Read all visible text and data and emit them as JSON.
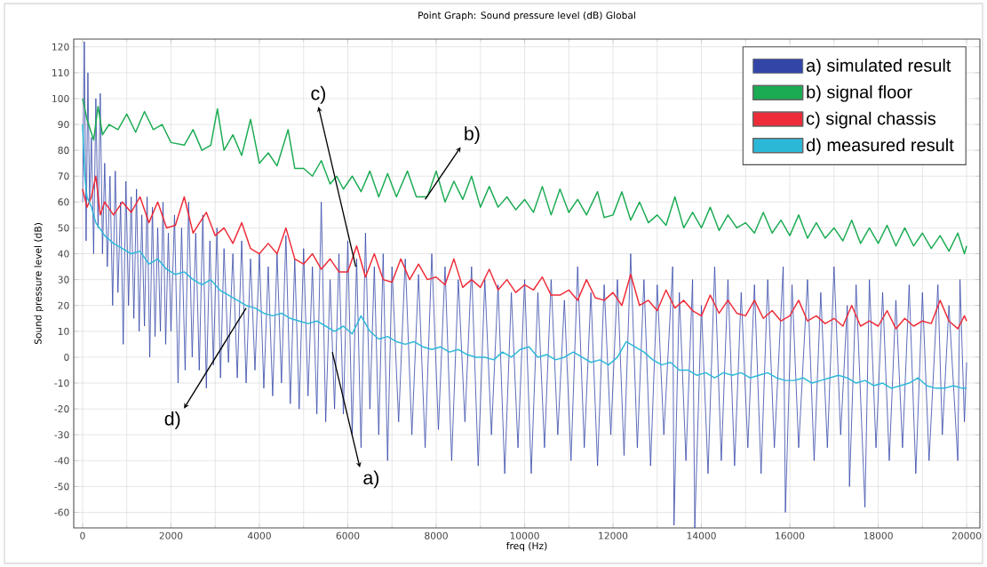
{
  "chart_data": {
    "type": "line",
    "title": "Point Graph: Sound pressure level (dB)  Global",
    "xlabel": "freq (Hz)",
    "ylabel": "Sound pressure level (dB)",
    "xlim": [
      -200,
      20300
    ],
    "ylim": [
      -66,
      123
    ],
    "xticks": [
      0,
      2000,
      4000,
      6000,
      8000,
      10000,
      12000,
      14000,
      16000,
      18000,
      20000
    ],
    "yticks": [
      -60,
      -50,
      -40,
      -30,
      -20,
      -10,
      0,
      10,
      20,
      30,
      40,
      50,
      60,
      70,
      80,
      90,
      100,
      110,
      120
    ],
    "grid": true,
    "legend": "top right",
    "series": [
      {
        "name": "a) simulated result",
        "color": "#3346a8",
        "x": [
          0,
          40,
          80,
          120,
          160,
          200,
          250,
          300,
          350,
          400,
          450,
          500,
          560,
          620,
          680,
          740,
          800,
          860,
          920,
          980,
          1040,
          1100,
          1160,
          1220,
          1280,
          1340,
          1400,
          1460,
          1520,
          1580,
          1640,
          1700,
          1760,
          1820,
          1880,
          1940,
          2000,
          2080,
          2160,
          2240,
          2320,
          2400,
          2480,
          2560,
          2640,
          2720,
          2800,
          2880,
          2960,
          3040,
          3120,
          3200,
          3300,
          3400,
          3500,
          3600,
          3700,
          3800,
          3900,
          4000,
          4100,
          4200,
          4300,
          4400,
          4500,
          4600,
          4700,
          4800,
          4900,
          5000,
          5100,
          5200,
          5300,
          5400,
          5500,
          5600,
          5700,
          5800,
          5900,
          6000,
          6100,
          6200,
          6300,
          6400,
          6500,
          6600,
          6700,
          6800,
          6900,
          7000,
          7150,
          7300,
          7450,
          7600,
          7750,
          7900,
          8050,
          8200,
          8350,
          8500,
          8650,
          8800,
          8950,
          9100,
          9250,
          9400,
          9550,
          9700,
          9850,
          10000,
          10150,
          10300,
          10450,
          10600,
          10750,
          10900,
          11050,
          11200,
          11350,
          11500,
          11650,
          11800,
          11950,
          12100,
          12250,
          12400,
          12550,
          12700,
          12850,
          13000,
          13150,
          13350,
          13380,
          13500,
          13650,
          13800,
          13850,
          14000,
          14150,
          14300,
          14450,
          14600,
          14750,
          14900,
          15050,
          15200,
          15350,
          15500,
          15650,
          15850,
          15900,
          16050,
          16200,
          16400,
          16550,
          16700,
          16850,
          17000,
          17150,
          17300,
          17350,
          17500,
          17700,
          17800,
          17950,
          18100,
          18250,
          18400,
          18550,
          18700,
          18850,
          19000,
          19150,
          19350,
          19450,
          19600,
          19800,
          19850,
          19950,
          20000
        ],
        "values": [
          60,
          122,
          45,
          110,
          60,
          85,
          40,
          100,
          50,
          102,
          40,
          75,
          35,
          70,
          20,
          72,
          25,
          60,
          5,
          68,
          20,
          62,
          15,
          65,
          10,
          55,
          12,
          62,
          0,
          58,
          8,
          50,
          10,
          60,
          5,
          48,
          10,
          55,
          -10,
          50,
          -5,
          60,
          0,
          48,
          -5,
          55,
          -12,
          45,
          -3,
          50,
          -8,
          42,
          -2,
          40,
          -8,
          45,
          -10,
          38,
          -5,
          40,
          -12,
          35,
          -15,
          40,
          -10,
          47,
          -18,
          38,
          -20,
          42,
          -15,
          35,
          -22,
          60,
          -25,
          30,
          -20,
          40,
          -22,
          45,
          -30,
          38,
          -35,
          48,
          -20,
          35,
          -30,
          40,
          -40,
          35,
          -25,
          38,
          -30,
          32,
          -35,
          40,
          -28,
          35,
          -40,
          30,
          -25,
          35,
          -42,
          30,
          -30,
          28,
          -45,
          25,
          -35,
          30,
          -45,
          25,
          -35,
          30,
          -30,
          22,
          -40,
          35,
          -35,
          25,
          -42,
          28,
          -30,
          30,
          -38,
          40,
          -35,
          30,
          -42,
          28,
          -30,
          35,
          -65,
          25,
          -40,
          30,
          -66,
          20,
          -45,
          35,
          -40,
          30,
          -42,
          25,
          -35,
          28,
          -45,
          30,
          -35,
          35,
          -60,
          28,
          -35,
          30,
          -40,
          25,
          -35,
          35,
          -30,
          20,
          -50,
          28,
          -58,
          30,
          -35,
          25,
          -40,
          22,
          -35,
          28,
          -45,
          25,
          -40,
          28,
          -30,
          20,
          -40,
          30,
          -25,
          -2
        ]
      },
      {
        "name": "b) signal floor",
        "color": "#1bab52",
        "x": [
          0,
          100,
          250,
          350,
          450,
          600,
          800,
          1000,
          1200,
          1400,
          1600,
          1800,
          2000,
          2300,
          2500,
          2700,
          2900,
          3050,
          3200,
          3400,
          3600,
          3800,
          4000,
          4200,
          4400,
          4650,
          4800,
          5000,
          5200,
          5400,
          5600,
          5750,
          5900,
          6100,
          6300,
          6500,
          6700,
          6900,
          7100,
          7350,
          7550,
          7800,
          8000,
          8200,
          8400,
          8600,
          8800,
          9000,
          9200,
          9400,
          9600,
          9800,
          10000,
          10200,
          10400,
          10600,
          10800,
          11000,
          11200,
          11400,
          11650,
          11800,
          12000,
          12200,
          12400,
          12600,
          12800,
          13000,
          13200,
          13400,
          13600,
          13800,
          14000,
          14200,
          14400,
          14600,
          14800,
          15000,
          15200,
          15400,
          15600,
          15800,
          16000,
          16200,
          16400,
          16600,
          16800,
          17000,
          17200,
          17400,
          17600,
          17800,
          18000,
          18200,
          18400,
          18600,
          18800,
          19000,
          19200,
          19400,
          19600,
          19800,
          19950,
          20000
        ],
        "values": [
          100,
          92,
          84,
          97,
          86,
          90,
          88,
          94,
          87,
          95,
          88,
          90,
          83,
          82,
          88,
          80,
          82,
          96,
          80,
          86,
          78,
          92,
          75,
          79,
          74,
          88,
          73,
          73,
          70,
          76,
          67,
          70,
          65,
          70,
          64,
          72,
          62,
          71,
          62,
          72,
          62,
          62,
          72,
          60,
          68,
          61,
          70,
          58,
          66,
          58,
          62,
          57,
          61,
          56,
          66,
          55,
          65,
          56,
          61,
          55,
          64,
          54,
          55,
          64,
          53,
          60,
          52,
          55,
          51,
          62,
          50,
          56,
          50,
          58,
          49,
          55,
          50,
          52,
          48,
          56,
          48,
          53,
          47,
          55,
          46,
          52,
          46,
          50,
          45,
          53,
          44,
          50,
          44,
          51,
          43,
          50,
          43,
          48,
          42,
          47,
          41,
          48,
          40,
          43
        ]
      },
      {
        "name": "c) signal chassis",
        "color": "#ee2b38",
        "x": [
          0,
          100,
          200,
          300,
          400,
          500,
          700,
          900,
          1100,
          1300,
          1500,
          1700,
          1900,
          2100,
          2300,
          2500,
          2800,
          3000,
          3200,
          3400,
          3600,
          3800,
          4000,
          4200,
          4400,
          4600,
          4800,
          5000,
          5200,
          5400,
          5600,
          5800,
          6000,
          6200,
          6400,
          6600,
          6800,
          7000,
          7200,
          7400,
          7600,
          7800,
          8000,
          8200,
          8400,
          8600,
          8800,
          9000,
          9200,
          9400,
          9600,
          9800,
          10000,
          10200,
          10400,
          10600,
          10800,
          11000,
          11200,
          11400,
          11600,
          11800,
          12000,
          12200,
          12400,
          12600,
          12800,
          13000,
          13200,
          13400,
          13600,
          13800,
          14000,
          14200,
          14400,
          14600,
          14800,
          15000,
          15200,
          15400,
          15600,
          15800,
          16000,
          16200,
          16400,
          16600,
          16800,
          17000,
          17200,
          17400,
          17600,
          17800,
          18000,
          18200,
          18400,
          18600,
          18800,
          19000,
          19200,
          19400,
          19600,
          19800,
          19950,
          20000
        ],
        "values": [
          65,
          58,
          62,
          70,
          55,
          60,
          55,
          60,
          56,
          62,
          52,
          60,
          50,
          51,
          62,
          48,
          56,
          47,
          50,
          44,
          52,
          42,
          40,
          44,
          40,
          50,
          38,
          36,
          40,
          34,
          38,
          33,
          33,
          43,
          31,
          40,
          30,
          29,
          38,
          30,
          36,
          30,
          31,
          28,
          38,
          27,
          30,
          27,
          34,
          26,
          30,
          25,
          28,
          26,
          31,
          24,
          24,
          26,
          22,
          30,
          23,
          22,
          25,
          20,
          32,
          20,
          22,
          18,
          26,
          19,
          22,
          18,
          16,
          24,
          17,
          22,
          17,
          16,
          22,
          15,
          18,
          14,
          16,
          22,
          14,
          16,
          13,
          15,
          12,
          20,
          12,
          14,
          12,
          18,
          11,
          15,
          12,
          14,
          13,
          22,
          14,
          11,
          16,
          14
        ]
      },
      {
        "name": "d) measured result",
        "color": "#2bb8d8",
        "x": [
          0,
          50,
          100,
          200,
          300,
          500,
          700,
          900,
          1100,
          1300,
          1500,
          1700,
          1900,
          2100,
          2300,
          2500,
          2700,
          2900,
          3100,
          3300,
          3500,
          3700,
          3900,
          4100,
          4300,
          4500,
          4700,
          4900,
          5100,
          5300,
          5500,
          5700,
          5900,
          6100,
          6300,
          6500,
          6700,
          6900,
          7100,
          7300,
          7500,
          7700,
          7900,
          8100,
          8300,
          8500,
          8700,
          8900,
          9100,
          9300,
          9500,
          9700,
          9900,
          10100,
          10300,
          10500,
          10700,
          10900,
          11100,
          11300,
          11500,
          11700,
          11900,
          12100,
          12300,
          12500,
          12700,
          12900,
          13100,
          13300,
          13500,
          13700,
          13900,
          14100,
          14300,
          14500,
          14700,
          14900,
          15100,
          15300,
          15500,
          15700,
          15900,
          16100,
          16300,
          16500,
          16700,
          16900,
          17100,
          17300,
          17500,
          17700,
          17900,
          18100,
          18300,
          18500,
          18700,
          18900,
          19100,
          19300,
          19500,
          19700,
          19900,
          20000
        ],
        "values": [
          90,
          70,
          62,
          58,
          52,
          47,
          44,
          42,
          40,
          41,
          36,
          38,
          34,
          32,
          33,
          30,
          28,
          30,
          26,
          24,
          22,
          20,
          19,
          17,
          16,
          17,
          15,
          14,
          13,
          14,
          12,
          10,
          12,
          9,
          16,
          10,
          7,
          8,
          6,
          5,
          6,
          4,
          3,
          4,
          2,
          3,
          1,
          0,
          0,
          -1,
          2,
          0,
          3,
          4,
          0,
          1,
          -1,
          0,
          2,
          0,
          -2,
          -1,
          -3,
          0,
          6,
          4,
          2,
          -1,
          -3,
          -2,
          -5,
          -5,
          -7,
          -6,
          -8,
          -6,
          -7,
          -6,
          -8,
          -7,
          -6,
          -8,
          -9,
          -9,
          -8,
          -10,
          -9,
          -8,
          -7,
          -8,
          -10,
          -9,
          -11,
          -10,
          -12,
          -11,
          -10,
          -8,
          -11,
          -12,
          -12,
          -11,
          -12,
          -12
        ]
      }
    ],
    "annotations": [
      {
        "text": "c)",
        "x": 6180,
        "y": 35
      },
      {
        "text": "b)",
        "x": 7750,
        "y": 61
      },
      {
        "text": "d)",
        "x": 3700,
        "y": 19
      },
      {
        "text": "a)",
        "x": 5650,
        "y": 2
      }
    ]
  }
}
